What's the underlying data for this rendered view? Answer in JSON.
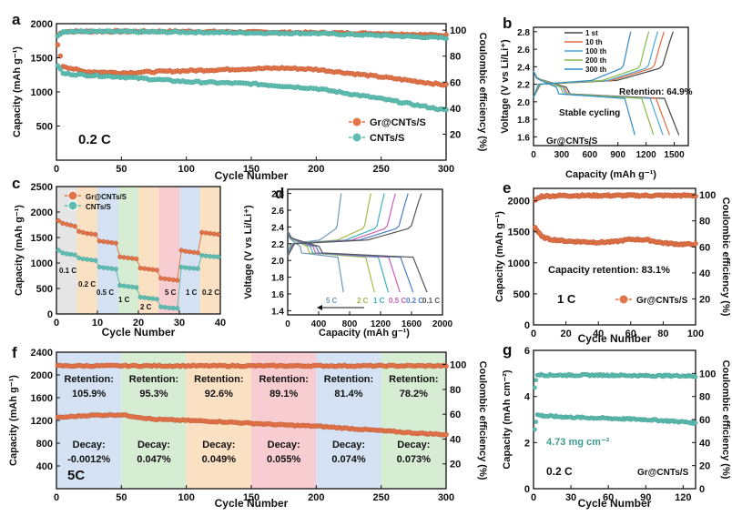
{
  "figure": {
    "panels": [
      "a",
      "b",
      "c",
      "d",
      "e",
      "f",
      "g"
    ]
  },
  "colors": {
    "gr": "#e27449",
    "cnt": "#5fbcb0",
    "cntDark": "#3f9a8f",
    "bandBlue": "#d4e2f4",
    "bandOrange": "#fbe1c3",
    "bandGreen": "#d6ecd3",
    "bandPink": "#f7cdd2",
    "bandGrey": "#e5e5e5"
  },
  "chart_data": [
    {
      "panel": "a",
      "type": "scatter",
      "title": "",
      "xlabel": "Cycle Number",
      "ylabel": "Capacity (mAh g-1)",
      "y2label": "Coulombic efficiency (%)",
      "xlim": [
        0,
        300
      ],
      "ylim": [
        0,
        2000
      ],
      "y2lim": [
        0,
        105
      ],
      "xticks": [
        0,
        50,
        100,
        150,
        200,
        250,
        300
      ],
      "yticks": [
        500,
        1000,
        1500,
        2000
      ],
      "y2ticks": [
        20,
        40,
        60,
        80,
        100
      ],
      "annotation": "0.2 C",
      "legend": [
        "Gr@CNTs/S",
        "CNTs/S"
      ],
      "series": [
        {
          "name": "Gr@CNTs/S capacity",
          "x": [
            1,
            5,
            20,
            50,
            100,
            150,
            175,
            200,
            250,
            300
          ],
          "y": [
            1680,
            1380,
            1300,
            1280,
            1310,
            1340,
            1350,
            1330,
            1220,
            1100
          ]
        },
        {
          "name": "CNTs/S capacity",
          "x": [
            1,
            5,
            20,
            50,
            100,
            150,
            200,
            250,
            300
          ],
          "y": [
            1390,
            1270,
            1250,
            1220,
            1150,
            1120,
            1050,
            900,
            730
          ]
        },
        {
          "name": "Gr@CNTs/S CE",
          "x": [
            1,
            5,
            50,
            100,
            150,
            200,
            250,
            300
          ],
          "y": [
            96,
            99,
            99,
            99,
            98.5,
            98,
            97.5,
            96
          ]
        },
        {
          "name": "CNTs/S CE",
          "x": [
            1,
            5,
            50,
            100,
            150,
            200,
            250,
            300
          ],
          "y": [
            96,
            99,
            98.8,
            98.5,
            98,
            97.5,
            96,
            94
          ]
        }
      ]
    },
    {
      "panel": "b",
      "type": "line",
      "xlabel": "Capacity (mAh g-1)",
      "ylabel": "Voltage (V vs Li/Li+)",
      "xlim": [
        0,
        1650
      ],
      "ylim": [
        1.5,
        2.85
      ],
      "xticks": [
        0,
        300,
        600,
        900,
        1200,
        1500
      ],
      "yticks": [
        1.6,
        1.8,
        2.0,
        2.2,
        2.4,
        2.6,
        2.8
      ],
      "annotations": [
        "Retention: 64.9%",
        "Stable cycling",
        "Gr@CNTs/S"
      ],
      "legend": [
        "1 st",
        "10 th",
        "100 th",
        "200 th",
        "300 th"
      ],
      "series": [
        {
          "name": "1 st",
          "color": "#444444",
          "capacity": 1550
        },
        {
          "name": "10 th",
          "color": "#e36a3f",
          "capacity": 1450
        },
        {
          "name": "100 th",
          "color": "#4aa6d7",
          "capacity": 1380
        },
        {
          "name": "200 th",
          "color": "#8ab84b",
          "capacity": 1280
        },
        {
          "name": "300 th",
          "color": "#2f8ac8",
          "capacity": 1080
        }
      ]
    },
    {
      "panel": "c",
      "type": "scatter",
      "xlabel": "Cycle Number",
      "ylabel": "Capacity (mAh g-1)",
      "xlim": [
        0,
        40
      ],
      "ylim": [
        0,
        2500
      ],
      "xticks": [
        0,
        10,
        20,
        30,
        40
      ],
      "yticks": [
        0,
        500,
        1000,
        1500,
        2000,
        2500
      ],
      "legend": [
        "Gr@CNTs/S",
        "CNTs/S"
      ],
      "rate_labels": [
        "0.1 C",
        "0.2 C",
        "0.5 C",
        "1 C",
        "2 C",
        "5 C",
        "1 C",
        "0.2 C"
      ],
      "series": [
        {
          "name": "Gr@CNTs/S",
          "values": [
            1830,
            1780,
            1760,
            1740,
            1720,
            1620,
            1600,
            1580,
            1570,
            1560,
            1430,
            1420,
            1410,
            1400,
            1390,
            1120,
            1110,
            1100,
            1090,
            1080,
            900,
            890,
            880,
            870,
            860,
            700,
            690,
            680,
            670,
            660,
            1250,
            1230,
            1220,
            1210,
            1200,
            1600,
            1590,
            1580,
            1570,
            1560
          ]
        },
        {
          "name": "CNTs/S",
          "values": [
            1250,
            1200,
            1180,
            1170,
            1160,
            1100,
            1080,
            1070,
            1060,
            1050,
            920,
            910,
            900,
            890,
            880,
            560,
            550,
            540,
            530,
            520,
            330,
            320,
            310,
            300,
            290,
            140,
            130,
            120,
            115,
            110,
            920,
            910,
            900,
            895,
            890,
            1150,
            1140,
            1130,
            1125,
            1120
          ]
        }
      ]
    },
    {
      "panel": "d",
      "type": "line",
      "xlabel": "Capacity (mAh g-1)",
      "ylabel": "Voltage (V vs Li/Li+)",
      "xlim": [
        0,
        2000
      ],
      "ylim": [
        1.35,
        2.85
      ],
      "xticks": [
        0,
        400,
        800,
        1200,
        1600,
        2000
      ],
      "yticks": [
        1.4,
        1.6,
        1.8,
        2.0,
        2.2,
        2.4,
        2.6,
        2.8
      ],
      "legend_label": [
        "5 C",
        "2 C",
        "1 C",
        "0.5 C",
        "0.2 C",
        "0.1 C"
      ],
      "series": [
        {
          "name": "5 C",
          "color": "#6f99b8",
          "capacity": 720
        },
        {
          "name": "2 C",
          "color": "#a8b84b",
          "capacity": 1120
        },
        {
          "name": "1 C",
          "color": "#3cb1c0",
          "capacity": 1300
        },
        {
          "name": "0.5 C",
          "color": "#c85fb5",
          "capacity": 1450
        },
        {
          "name": "0.2 C",
          "color": "#4a7ec9",
          "capacity": 1620
        },
        {
          "name": "0.1 C",
          "color": "#555555",
          "capacity": 1800
        }
      ]
    },
    {
      "panel": "e",
      "type": "scatter",
      "xlabel": "Cycle Number",
      "ylabel": "Capacity (mAh g-1)",
      "y2label": "Coulombic efficiency (%)",
      "xlim": [
        0,
        100
      ],
      "ylim": [
        0,
        2200
      ],
      "y2lim": [
        0,
        105
      ],
      "xticks": [
        0,
        20,
        40,
        60,
        80,
        100
      ],
      "yticks": [
        0,
        500,
        1000,
        1500,
        2000
      ],
      "y2ticks": [
        20,
        40,
        60,
        80,
        100
      ],
      "annotations": [
        "Capacity retention:  83.1%",
        "1 C"
      ],
      "legend": [
        "Gr@CNTs/S"
      ],
      "series": [
        {
          "name": "capacity",
          "x": [
            1,
            5,
            10,
            20,
            30,
            40,
            50,
            60,
            70,
            80,
            90,
            100
          ],
          "y": [
            1570,
            1420,
            1380,
            1350,
            1340,
            1330,
            1340,
            1380,
            1370,
            1320,
            1300,
            1300
          ]
        },
        {
          "name": "CE",
          "x": [
            1,
            5,
            20,
            40,
            60,
            80,
            100
          ],
          "y": [
            96,
            99,
            99.5,
            99.5,
            99.5,
            99.5,
            99.5
          ]
        }
      ]
    },
    {
      "panel": "f",
      "type": "scatter",
      "xlabel": "Cycle Number",
      "ylabel": "Capacity (mAh g-1)",
      "y2label": "Coulombic efficiency (%)",
      "xlim": [
        0,
        300
      ],
      "ylim": [
        0,
        2400
      ],
      "y2lim": [
        0,
        110
      ],
      "xticks": [
        0,
        50,
        100,
        150,
        200,
        250,
        300
      ],
      "yticks": [
        400,
        800,
        1200,
        1600,
        2000,
        2400
      ],
      "y2ticks": [
        20,
        40,
        60,
        80,
        100
      ],
      "annotation": "5C",
      "segments": [
        {
          "range": [
            0,
            50
          ],
          "retention_label": "Retention:",
          "retention": "105.9%",
          "decay_label": "Decay:",
          "decay": "-0.0012%"
        },
        {
          "range": [
            50,
            100
          ],
          "retention_label": "Retention:",
          "retention": "95.3%",
          "decay_label": "Decay:",
          "decay": "0.047%"
        },
        {
          "range": [
            100,
            150
          ],
          "retention_label": "Retention:",
          "retention": "92.6%",
          "decay_label": "Decay:",
          "decay": "0.049%"
        },
        {
          "range": [
            150,
            200
          ],
          "retention_label": "Retention:",
          "retention": "89.1%",
          "decay_label": "Decay:",
          "decay": "0.055%"
        },
        {
          "range": [
            200,
            250
          ],
          "retention_label": "Retention:",
          "retention": "81.4%",
          "decay_label": "Decay:",
          "decay": "0.074%"
        },
        {
          "range": [
            250,
            300
          ],
          "retention_label": "Retention:",
          "retention": "78.2%",
          "decay_label": "Decay:",
          "decay": "0.073%"
        }
      ],
      "series": [
        {
          "name": "capacity",
          "x": [
            1,
            25,
            50,
            75,
            100,
            125,
            150,
            175,
            200,
            225,
            250,
            275,
            300
          ],
          "y": [
            1250,
            1290,
            1300,
            1220,
            1200,
            1180,
            1150,
            1120,
            1100,
            1060,
            1020,
            980,
            950
          ]
        },
        {
          "name": "CE",
          "x": [
            1,
            50,
            100,
            150,
            200,
            250,
            300
          ],
          "y": [
            99,
            99,
            99,
            99,
            99,
            99,
            99
          ]
        }
      ]
    },
    {
      "panel": "g",
      "type": "scatter",
      "xlabel": "Cycle Number",
      "ylabel": "Capacity (mAh cm-2)",
      "y2label": "Coulombic efficiency (%)",
      "xlim": [
        0,
        130
      ],
      "ylim": [
        0,
        6
      ],
      "y2lim": [
        0,
        120
      ],
      "xticks": [
        0,
        30,
        60,
        90,
        120
      ],
      "yticks": [
        0,
        2,
        4,
        6
      ],
      "y2ticks": [
        0,
        20,
        40,
        60,
        80,
        100
      ],
      "annotations": [
        "4.73 mg cm-2",
        "0.2 C",
        "Gr@CNTs/S"
      ],
      "series": [
        {
          "name": "capacity",
          "x": [
            1,
            3,
            10,
            30,
            60,
            90,
            120,
            130
          ],
          "y": [
            2.6,
            3.2,
            3.15,
            3.1,
            3.05,
            3.0,
            2.9,
            2.85
          ]
        },
        {
          "name": "CE",
          "x": [
            1,
            3,
            10,
            30,
            60,
            90,
            120,
            130
          ],
          "y": [
            88,
            99,
            98.5,
            98.5,
            98.5,
            98,
            98,
            97.5
          ]
        }
      ]
    }
  ],
  "labels": {
    "a": "a",
    "b": "b",
    "c": "c",
    "d": "d",
    "e": "e",
    "f": "f",
    "g": "g"
  }
}
